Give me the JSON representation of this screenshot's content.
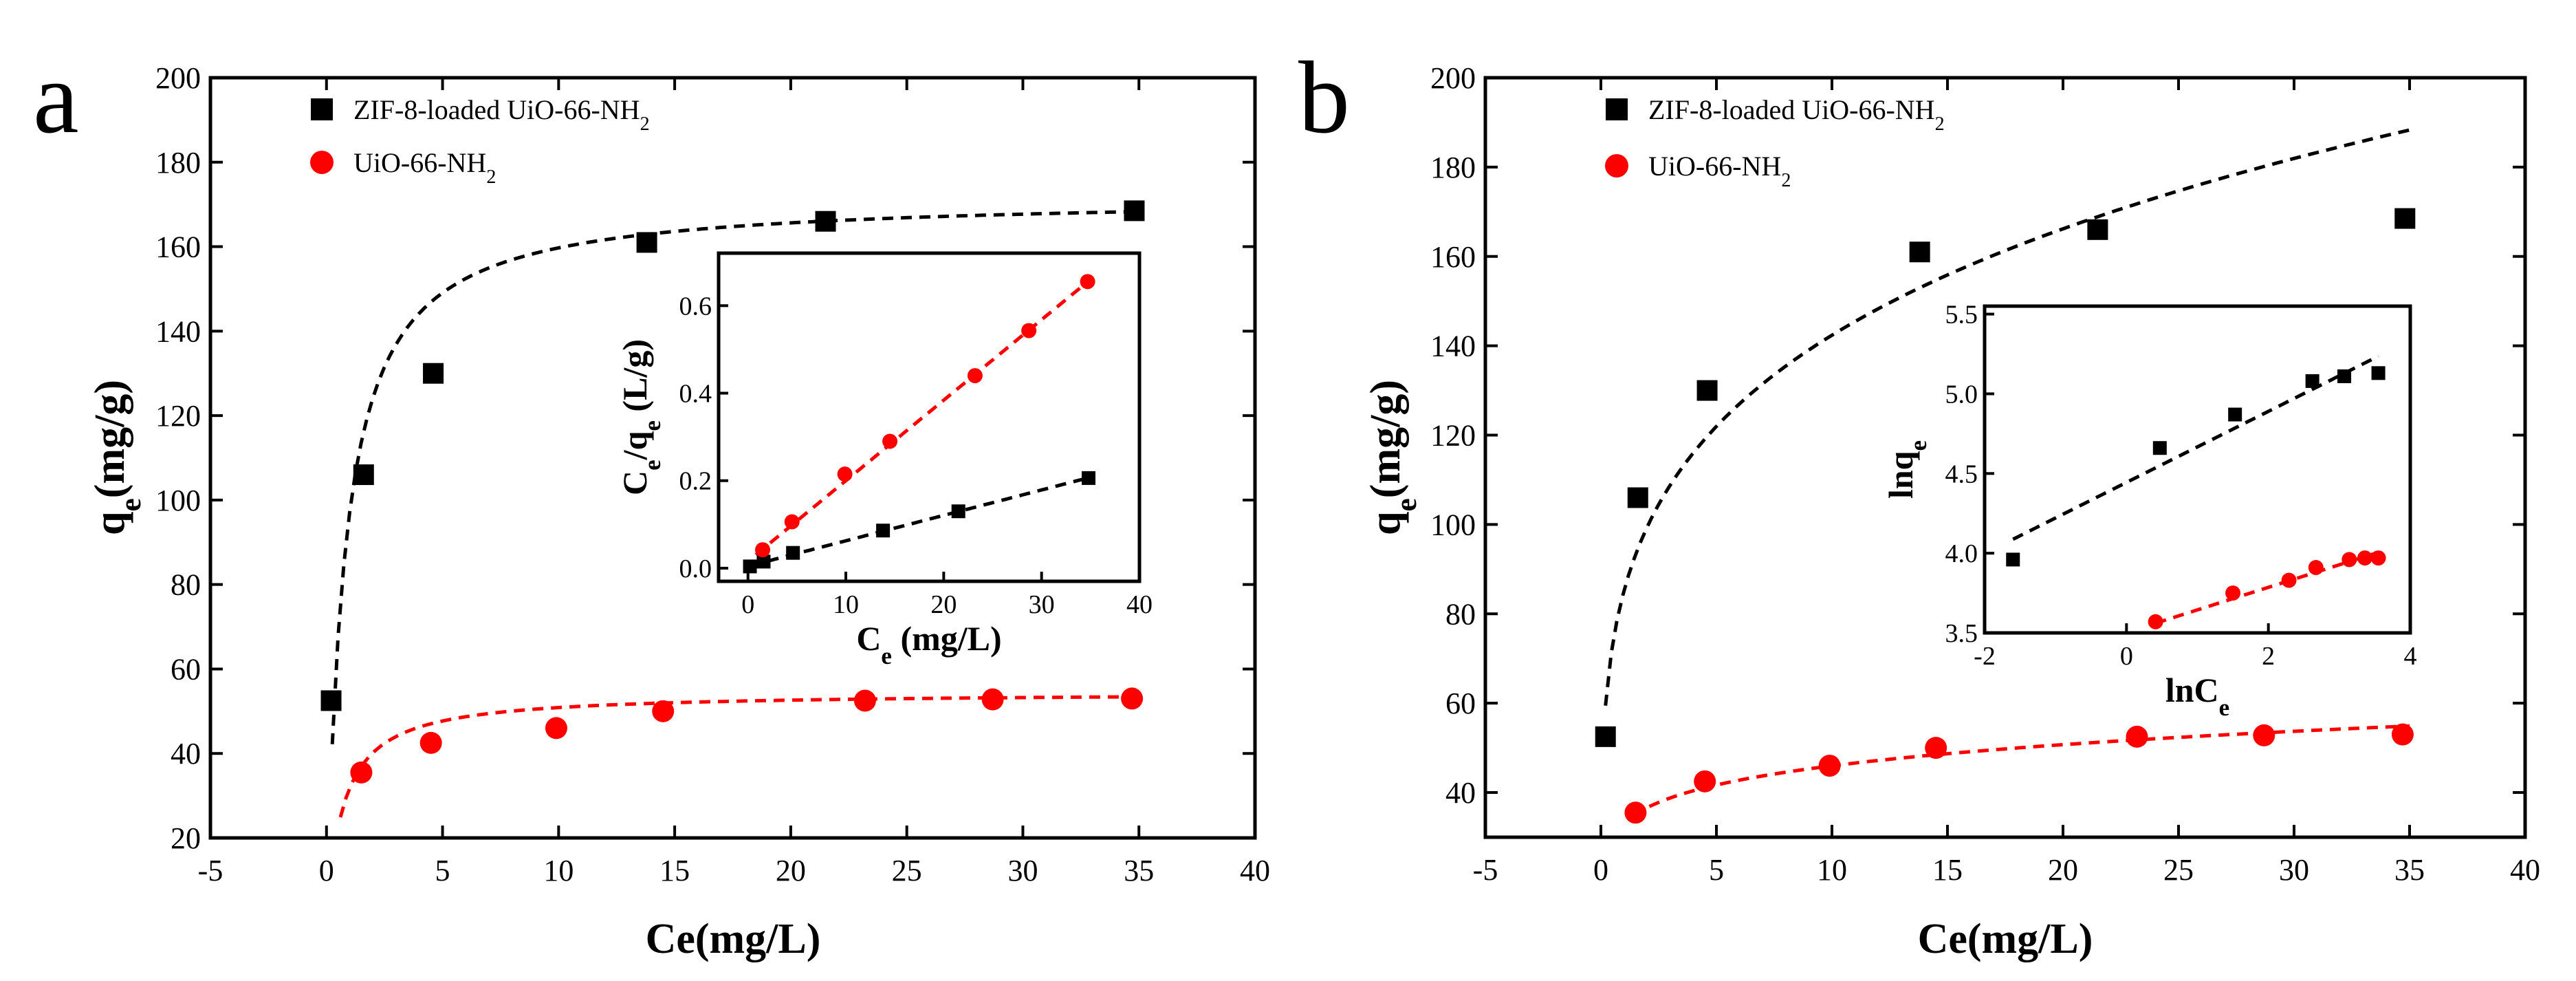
{
  "colors": {
    "series1": "#000000",
    "series2": "#ff0000"
  },
  "chart_data": [
    {
      "panel_label": "a",
      "type": "scatter",
      "xlabel": "Ce(mg/L)",
      "ylabel": {
        "main": "q",
        "sub": "e",
        "rest": "(mg/g)"
      },
      "xlim": [
        -5,
        40
      ],
      "ylim": [
        20,
        200
      ],
      "xticks": [
        -5,
        0,
        5,
        10,
        15,
        20,
        25,
        30,
        35,
        40
      ],
      "yticks": [
        20,
        40,
        60,
        80,
        100,
        120,
        140,
        160,
        180,
        200
      ],
      "legend": {
        "position": "top-left"
      },
      "series": [
        {
          "name": "ZIF-8-loaded UiO-66-NH2",
          "label_main": "ZIF-8-loaded UiO-66-NH",
          "label_sub": "2",
          "marker": "square",
          "color": "#000000",
          "x": [
            0.2,
            1.6,
            4.6,
            13.8,
            21.5,
            34.8
          ],
          "y": [
            52.5,
            106,
            130,
            161,
            166,
            168.5
          ],
          "fit": {
            "model": "langmuir",
            "qmax": 172,
            "KL": 1.3,
            "x_start": 0.25,
            "x_end": 35
          }
        },
        {
          "name": "UiO-66-NH2",
          "label_main": "UiO-66-NH",
          "label_sub": "2",
          "marker": "circle",
          "color": "#ff0000",
          "x": [
            1.5,
            4.5,
            9.9,
            14.5,
            23.2,
            28.7,
            34.7
          ],
          "y": [
            35.5,
            42.5,
            46,
            50,
            52.5,
            52.8,
            53
          ],
          "fit": {
            "model": "langmuir",
            "qmax": 54.5,
            "KL": 1.4,
            "x_start": 0.6,
            "x_end": 35
          }
        }
      ],
      "inset": {
        "type": "scatter",
        "xlabel": {
          "main": "C",
          "sub": "e",
          "rest": " (mg/L)"
        },
        "ylabel": {
          "p1": "C",
          "s1": "e",
          "p2": "/q",
          "s2": "e",
          "rest": " (L/g)"
        },
        "xlim": [
          -3,
          40
        ],
        "ylim": [
          -0.03,
          0.72
        ],
        "xticks": [
          0,
          10,
          20,
          30,
          40
        ],
        "yticks": [
          0.0,
          0.2,
          0.4,
          0.6
        ],
        "ytick_labels": [
          "0.0",
          "0.2",
          "0.4",
          "0.6"
        ],
        "series": [
          {
            "name": "ZIF-8-loaded UiO-66-NH2",
            "marker": "square",
            "color": "#000000",
            "x": [
              0.2,
              1.6,
              4.6,
              13.8,
              21.5,
              34.8
            ],
            "y": [
              0.004,
              0.015,
              0.035,
              0.086,
              0.13,
              0.206
            ],
            "fit": {
              "slope": 0.00581,
              "intercept": 0.0045,
              "x_start": 0.2,
              "x_end": 35
            }
          },
          {
            "name": "UiO-66-NH2",
            "marker": "circle",
            "color": "#ff0000",
            "x": [
              1.5,
              4.5,
              9.9,
              14.5,
              23.2,
              28.7,
              34.7
            ],
            "y": [
              0.042,
              0.106,
              0.215,
              0.29,
              0.44,
              0.543,
              0.655
            ],
            "fit": {
              "slope": 0.0184,
              "intercept": 0.016,
              "x_start": 0.8,
              "x_end": 35
            }
          }
        ]
      }
    },
    {
      "panel_label": "b",
      "type": "scatter",
      "xlabel": "Ce(mg/L)",
      "ylabel": {
        "main": "q",
        "sub": "e",
        "rest": "(mg/g)"
      },
      "xlim": [
        -5,
        40
      ],
      "ylim": [
        30,
        200
      ],
      "xticks": [
        -5,
        0,
        5,
        10,
        15,
        20,
        25,
        30,
        35,
        40
      ],
      "yticks": [
        40,
        60,
        80,
        100,
        120,
        140,
        160,
        180,
        200
      ],
      "legend": {
        "position": "top-left"
      },
      "series": [
        {
          "name": "ZIF-8-loaded UiO-66-NH2",
          "label_main": "ZIF-8-loaded UiO-66-NH",
          "label_sub": "2",
          "marker": "square",
          "color": "#000000",
          "x": [
            0.2,
            1.6,
            4.6,
            13.8,
            21.5,
            34.8
          ],
          "y": [
            52.5,
            106,
            130,
            161,
            166,
            168.5
          ],
          "fit": {
            "model": "freundlich",
            "KF": 85.15,
            "n": 4.48,
            "x_start": 0.2,
            "x_end": 35
          }
        },
        {
          "name": "UiO-66-NH2",
          "label_main": "UiO-66-NH",
          "label_sub": "2",
          "marker": "circle",
          "color": "#ff0000",
          "x": [
            1.5,
            4.5,
            9.9,
            14.5,
            23.2,
            28.7,
            34.7
          ],
          "y": [
            35.5,
            42.5,
            46,
            50,
            52.5,
            52.8,
            53
          ],
          "fit": {
            "model": "freundlich",
            "KF": 33.2,
            "n": 7.07,
            "x_start": 1.4,
            "x_end": 35
          }
        }
      ],
      "inset": {
        "type": "scatter",
        "xlabel": {
          "main": "lnC",
          "sub": "e",
          "rest": ""
        },
        "ylabel": {
          "p1": "lnq",
          "s1": "e",
          "p2": "",
          "s2": "",
          "rest": ""
        },
        "xlim": [
          -2,
          4
        ],
        "ylim": [
          3.5,
          5.55
        ],
        "xticks": [
          -2,
          0,
          2,
          4
        ],
        "yticks": [
          3.5,
          4.0,
          4.5,
          5.0,
          5.5
        ],
        "ytick_labels": [
          "3.5",
          "4.0",
          "4.5",
          "5.0",
          "5.5"
        ],
        "series": [
          {
            "name": "ZIF-8-loaded UiO-66-NH2",
            "marker": "square",
            "color": "#000000",
            "x": [
              -1.6,
              0.47,
              1.53,
              2.62,
              3.07,
              3.55
            ],
            "y": [
              3.96,
              4.66,
              4.87,
              5.08,
              5.11,
              5.13
            ],
            "fit": {
              "slope": 0.223,
              "intercept": 4.444,
              "x_start": -1.6,
              "x_end": 3.55
            }
          },
          {
            "name": "UiO-66-NH2",
            "marker": "circle",
            "color": "#ff0000",
            "x": [
              0.41,
              1.5,
              2.29,
              2.67,
              3.14,
              3.36,
              3.55
            ],
            "y": [
              3.57,
              3.75,
              3.83,
              3.91,
              3.96,
              3.97,
              3.97
            ],
            "fit": {
              "slope": 0.1414,
              "intercept": 3.503,
              "x_start": 0.41,
              "x_end": 3.55
            }
          }
        ]
      }
    }
  ]
}
